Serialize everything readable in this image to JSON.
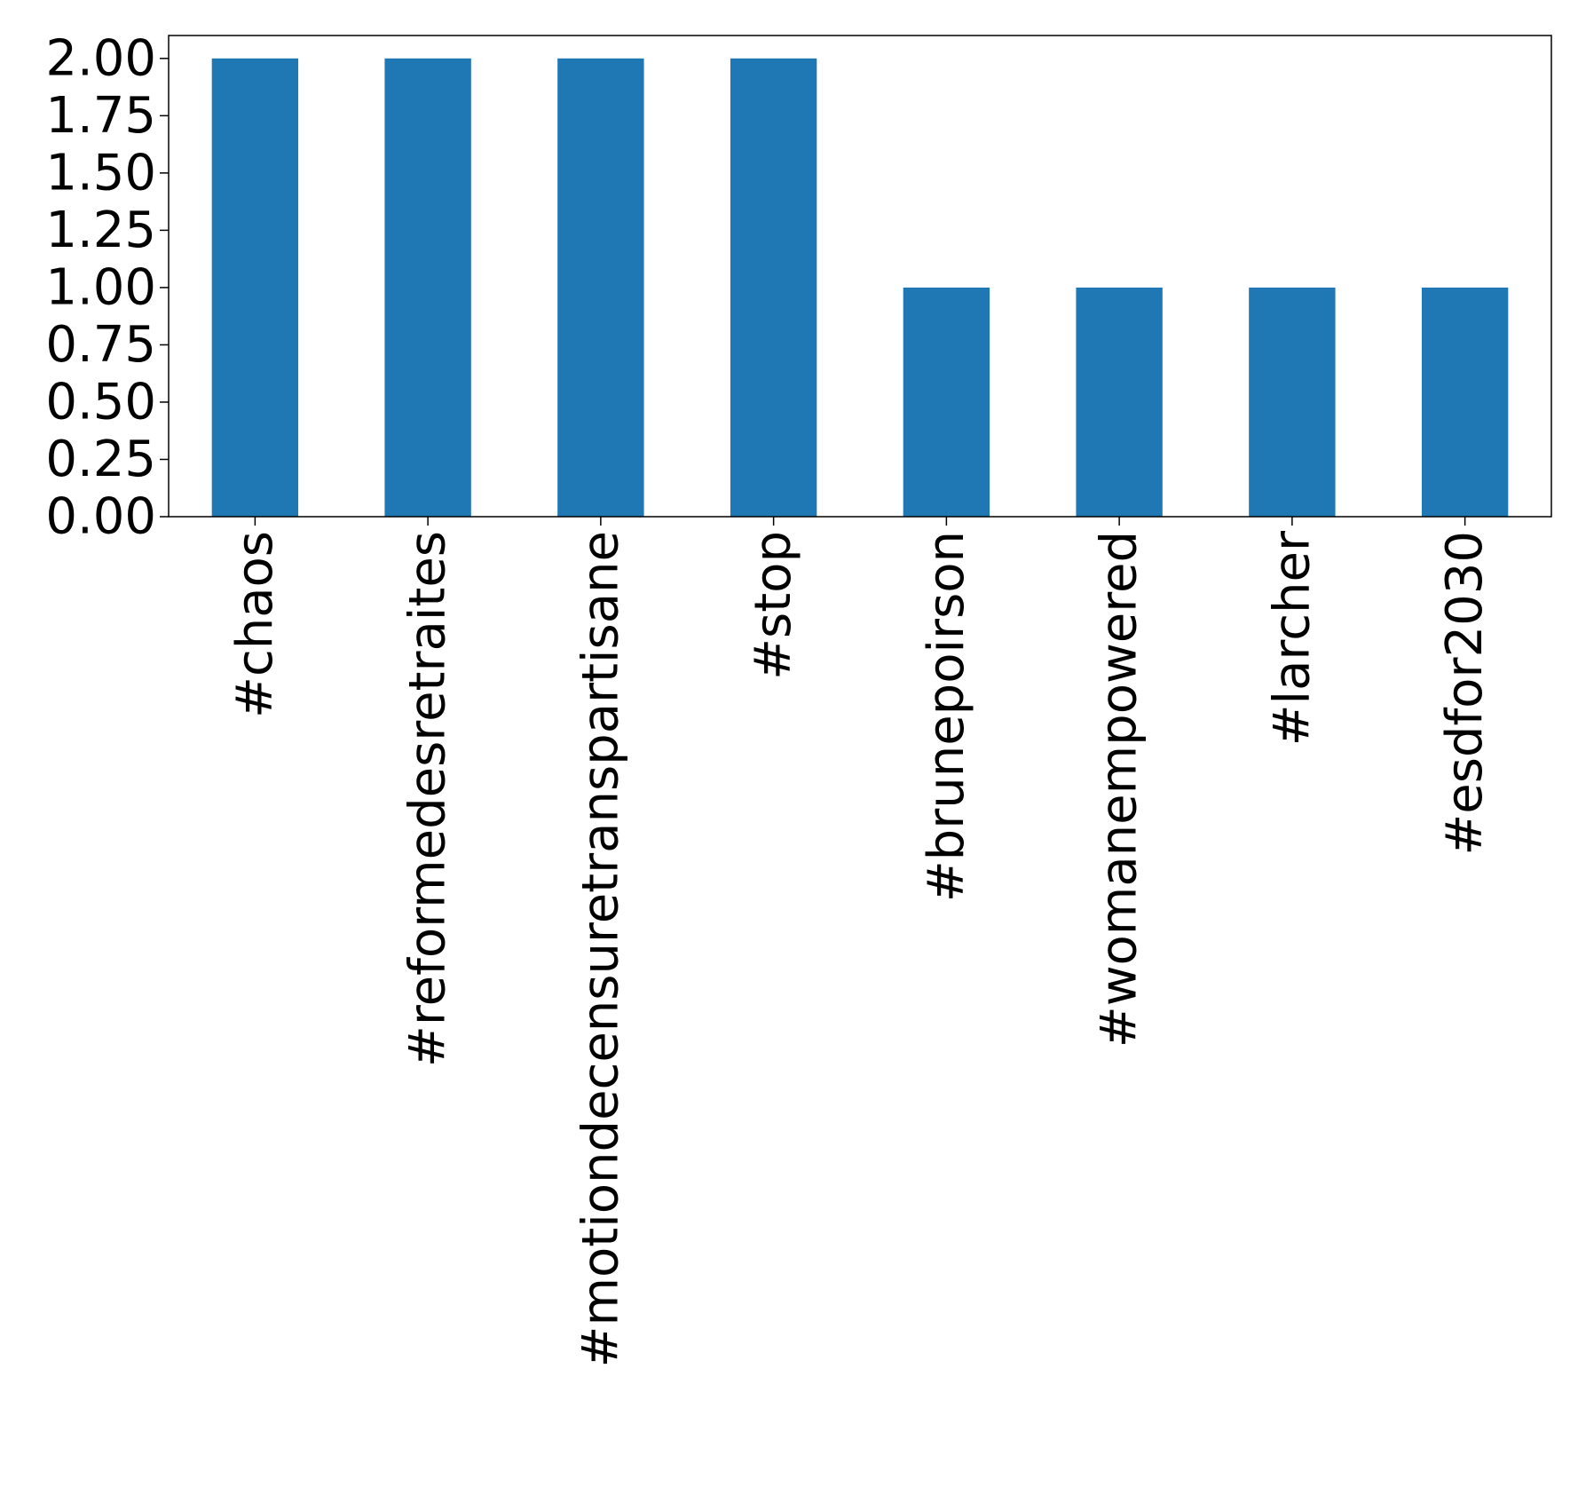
{
  "chart_data": {
    "type": "bar",
    "title": "",
    "xlabel": "",
    "ylabel": "",
    "categories": [
      "#chaos",
      "#reformedesretraites",
      "#motiondecensuretranspartisane",
      "#stop",
      "#brunepoirson",
      "#womanempowered",
      "#larcher",
      "#esdfor2030"
    ],
    "values": [
      2,
      2,
      2,
      2,
      1,
      1,
      1,
      1
    ],
    "ylim": [
      0,
      2.1
    ],
    "yticks": [
      "0.00",
      "0.25",
      "0.50",
      "0.75",
      "1.00",
      "1.25",
      "1.50",
      "1.75",
      "2.00"
    ],
    "grid": false,
    "legend": "none",
    "bar_color": "#1f77b4"
  }
}
